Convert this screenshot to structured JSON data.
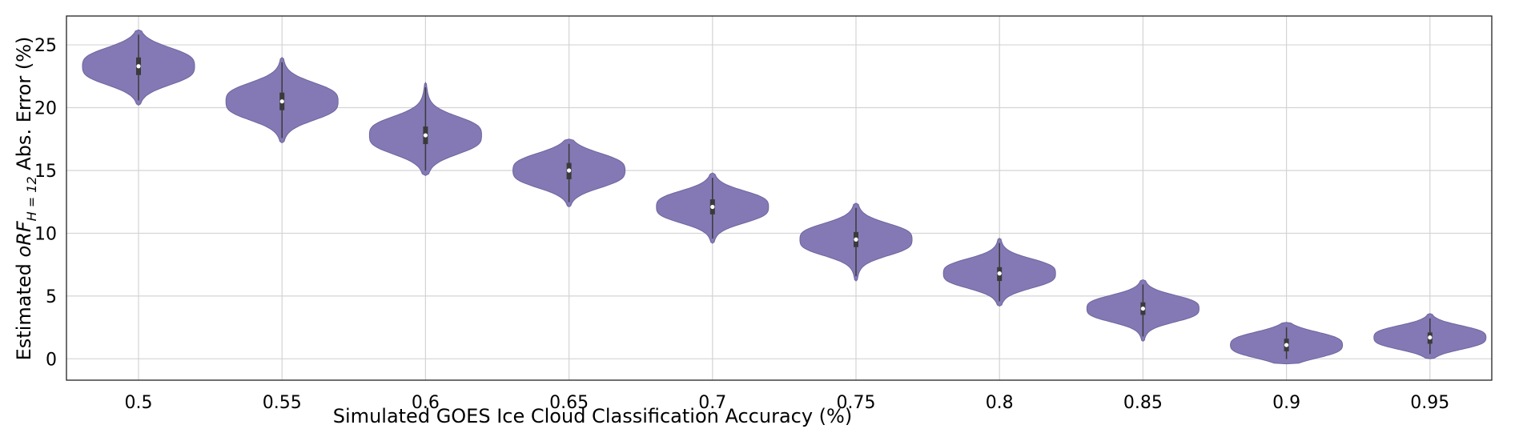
{
  "chart_data": {
    "type": "violin",
    "title": "",
    "xlabel": "Simulated GOES Ice Cloud Classification Accuracy (%)",
    "ylabel": {
      "prefix": "Estimated ",
      "symbol": "oRF",
      "subscript": "H = 12",
      "suffix": " Abs. Error (%)"
    },
    "ylim": [
      -1.7,
      27.3
    ],
    "yticks": [
      0,
      5,
      10,
      15,
      20,
      25
    ],
    "grid": true,
    "color": "#8479b4",
    "categories": [
      "0.5",
      "0.55",
      "0.6",
      "0.65",
      "0.7",
      "0.75",
      "0.8",
      "0.85",
      "0.9",
      "0.95"
    ],
    "series": [
      {
        "category": "0.5",
        "min": 20.2,
        "q1": 22.6,
        "median": 23.3,
        "q3": 24.0,
        "max": 26.2
      },
      {
        "category": "0.55",
        "min": 17.2,
        "q1": 19.8,
        "median": 20.5,
        "q3": 21.2,
        "max": 24.0
      },
      {
        "category": "0.6",
        "min": 14.6,
        "q1": 17.1,
        "median": 17.8,
        "q3": 18.5,
        "max": 22.0
      },
      {
        "category": "0.65",
        "min": 12.1,
        "q1": 14.3,
        "median": 15.0,
        "q3": 15.6,
        "max": 17.5
      },
      {
        "category": "0.7",
        "min": 9.2,
        "q1": 11.5,
        "median": 12.1,
        "q3": 12.7,
        "max": 14.8
      },
      {
        "category": "0.75",
        "min": 6.2,
        "q1": 8.9,
        "median": 9.5,
        "q3": 10.1,
        "max": 12.4
      },
      {
        "category": "0.8",
        "min": 4.2,
        "q1": 6.2,
        "median": 6.8,
        "q3": 7.3,
        "max": 9.6
      },
      {
        "category": "0.85",
        "min": 1.4,
        "q1": 3.5,
        "median": 4.0,
        "q3": 4.5,
        "max": 6.3
      },
      {
        "category": "0.9",
        "min": -0.4,
        "q1": 0.6,
        "median": 1.1,
        "q3": 1.6,
        "max": 2.9
      },
      {
        "category": "0.95",
        "min": 0.0,
        "q1": 1.2,
        "median": 1.7,
        "q3": 2.1,
        "max": 3.6
      }
    ]
  }
}
